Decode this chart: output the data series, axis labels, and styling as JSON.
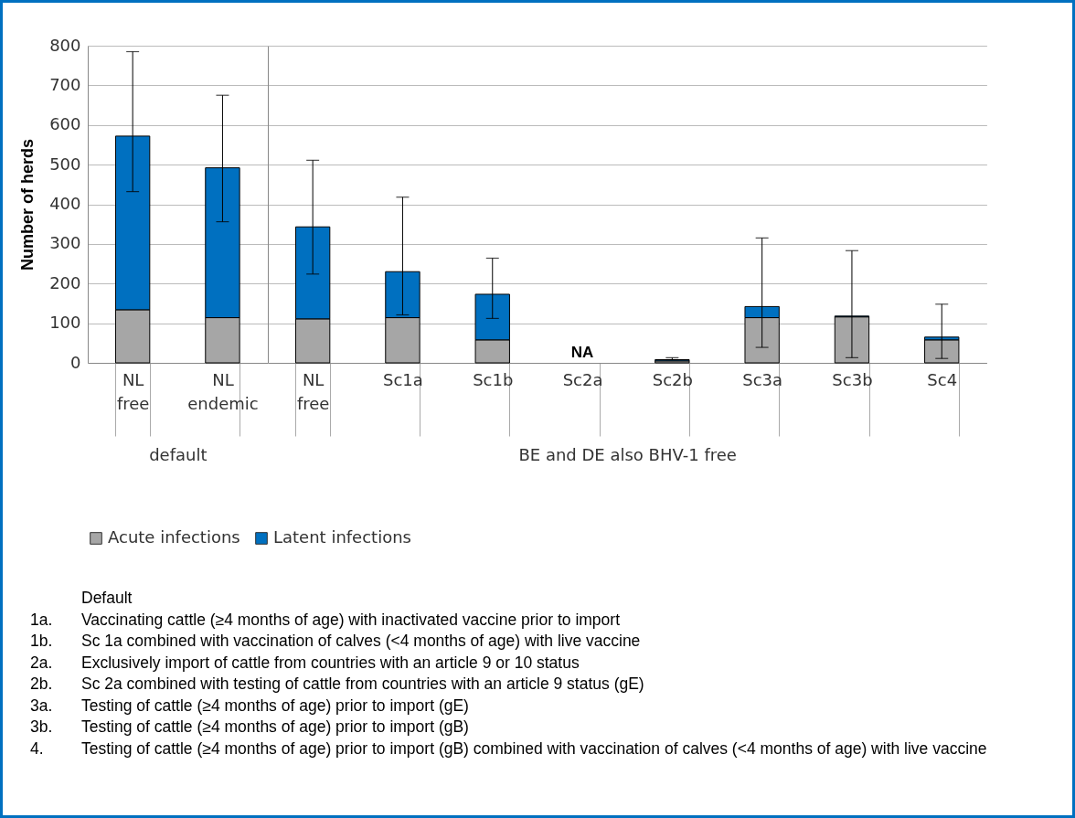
{
  "chart_data": [
    {
      "type": "bar",
      "stacked": true,
      "ylabel": "Number of herds",
      "xlabel": "default",
      "categories": [
        "NL free",
        "NL endemic"
      ],
      "series": [
        {
          "name": "Acute infections",
          "color": "#a6a6a6",
          "values": [
            134,
            114
          ]
        },
        {
          "name": "Latent infections",
          "color": "#0070c0",
          "values": [
            438,
            378
          ],
          "errors": [
            [
              432,
              785
            ],
            [
              356,
              675
            ]
          ]
        }
      ],
      "ylim": [
        0,
        800
      ],
      "yticks": [
        0,
        100,
        200,
        300,
        400,
        500,
        600,
        700,
        800
      ],
      "grid": "y",
      "legend": "bottom"
    },
    {
      "type": "bar",
      "stacked": true,
      "xlabel": "BE and DE also BHV-1 free",
      "tick_labels": "x",
      "categories": [
        "NL free",
        "Sc1a",
        "Sc1b",
        "Sc2a",
        "Sc2b",
        "Sc3a",
        "Sc3b",
        "Sc4"
      ],
      "series": [
        {
          "name": "Acute infections",
          "color": "#a6a6a6",
          "values": [
            111,
            114,
            58,
            null,
            5,
            114,
            116,
            58
          ]
        },
        {
          "name": "Latent infections",
          "color": "#0070c0",
          "values": [
            232,
            116,
            115,
            null,
            3,
            28,
            2,
            7
          ],
          "errors": [
            [
              224,
              511
            ],
            [
              121,
              418
            ],
            [
              112,
              264
            ],
            null,
            [
              8,
              13
            ],
            [
              39,
              315
            ],
            [
              13,
              283
            ],
            [
              11,
              148
            ]
          ]
        }
      ],
      "ylim": [
        0,
        800
      ],
      "yticks": [
        0,
        100,
        200,
        300,
        400,
        500,
        600,
        700,
        800
      ],
      "grid": "y",
      "legend": "bottom",
      "annotations": [
        "NA",
        "Default",
        "1a. Vaccinating cattle (≥4 months of age) with inactivated vaccine prior to import",
        "1b. Sc 1a combined with vaccination of calves (<4 months of age) with live vaccine",
        "2a. Exclusively import of cattle from countries with an article 9 or 10 status",
        "2b. Sc 2a combined with testing of cattle from countries with an article 9 status (gE)",
        "3a. Testing of cattle (≥4 months of age) prior to import (gE)",
        "3b. Testing of cattle (≥4 months of age) prior to import (gB)",
        "4. Testing of cattle (≥4 months of age) prior to import (gB) combined with vaccination of calves (<4 months of age) with live vaccine"
      ]
    }
  ]
}
